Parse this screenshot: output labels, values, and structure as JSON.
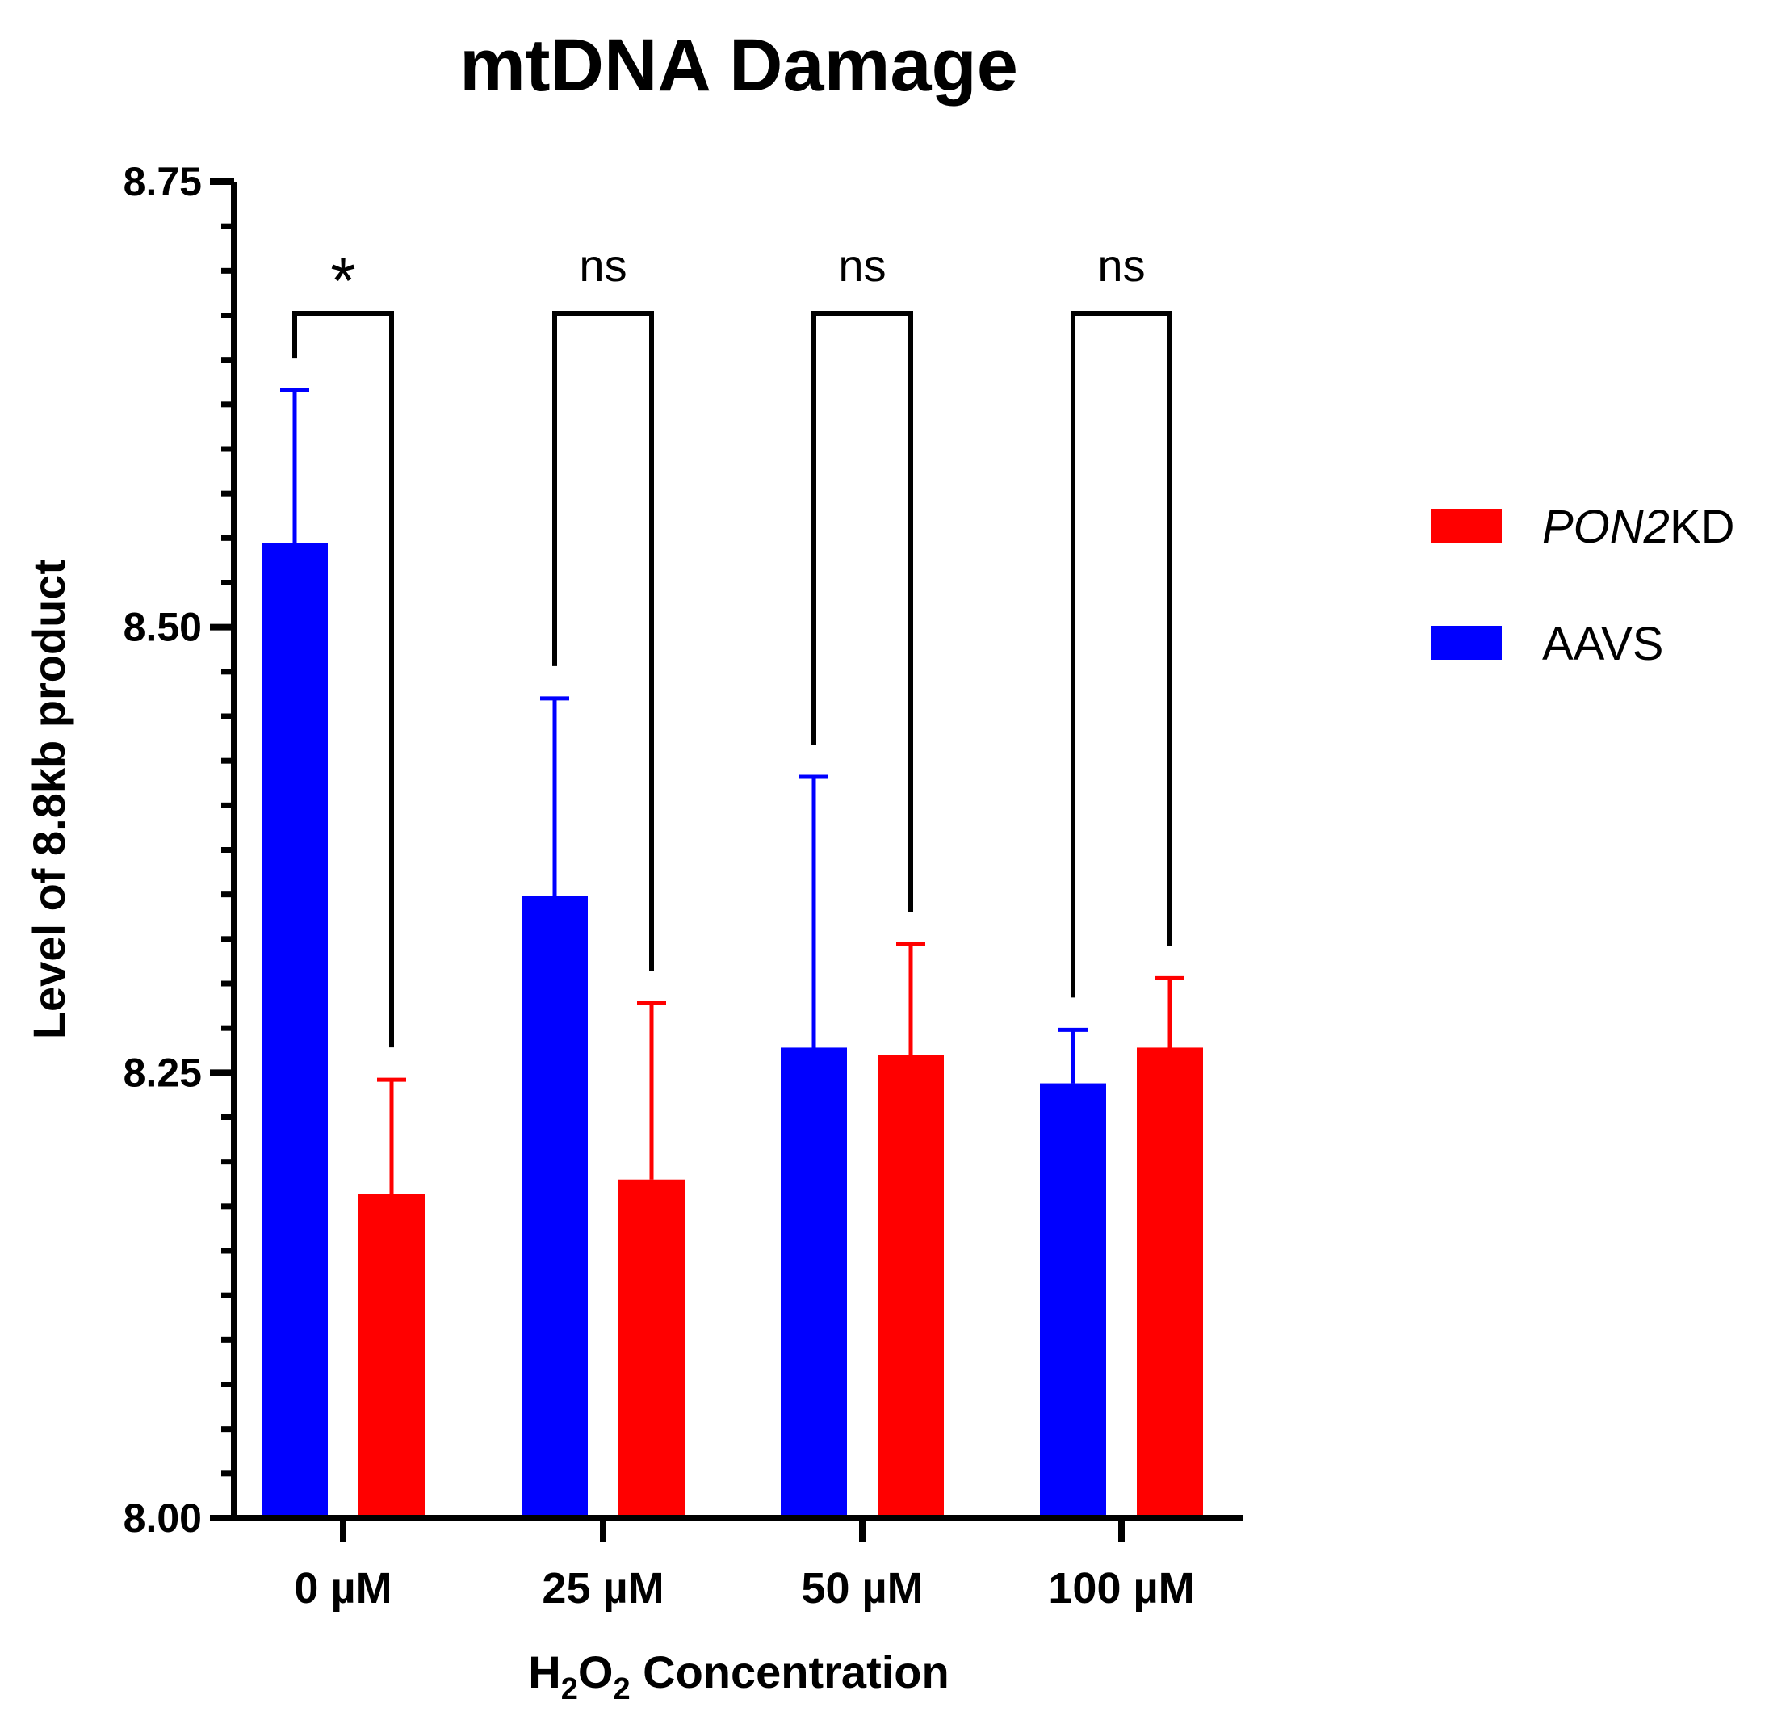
{
  "chart_data": {
    "type": "bar",
    "title": "mtDNA Damage",
    "xlabel": {
      "pre": "H",
      "sub1": "2",
      "mid": "O",
      "sub2": "2",
      "post": " Concentration"
    },
    "ylabel": "Level of 8.8kb product",
    "ylim": [
      8.0,
      8.75
    ],
    "yticks": [
      "8.00",
      "8.25",
      "8.50",
      "8.75"
    ],
    "categories": [
      "0 µM",
      "25 µM",
      "50 µM",
      "100 µM"
    ],
    "series": [
      {
        "name": "AAVS",
        "color": "#0000ff",
        "values": [
          8.547,
          8.349,
          8.264,
          8.244
        ],
        "errors": [
          0.086,
          0.111,
          0.152,
          0.03
        ]
      },
      {
        "name": "PON2KD",
        "color": "#ff0000",
        "values": [
          8.182,
          8.19,
          8.26,
          8.264
        ],
        "errors": [
          0.064,
          0.099,
          0.062,
          0.039
        ]
      }
    ],
    "significance": [
      "*",
      "ns",
      "ns",
      "ns"
    ],
    "legend": [
      {
        "italic": "PON2",
        "rest": "KD",
        "color": "#ff0000"
      },
      {
        "italic": "",
        "rest": "AAVS",
        "color": "#0000ff"
      }
    ],
    "legend_position": "right"
  }
}
